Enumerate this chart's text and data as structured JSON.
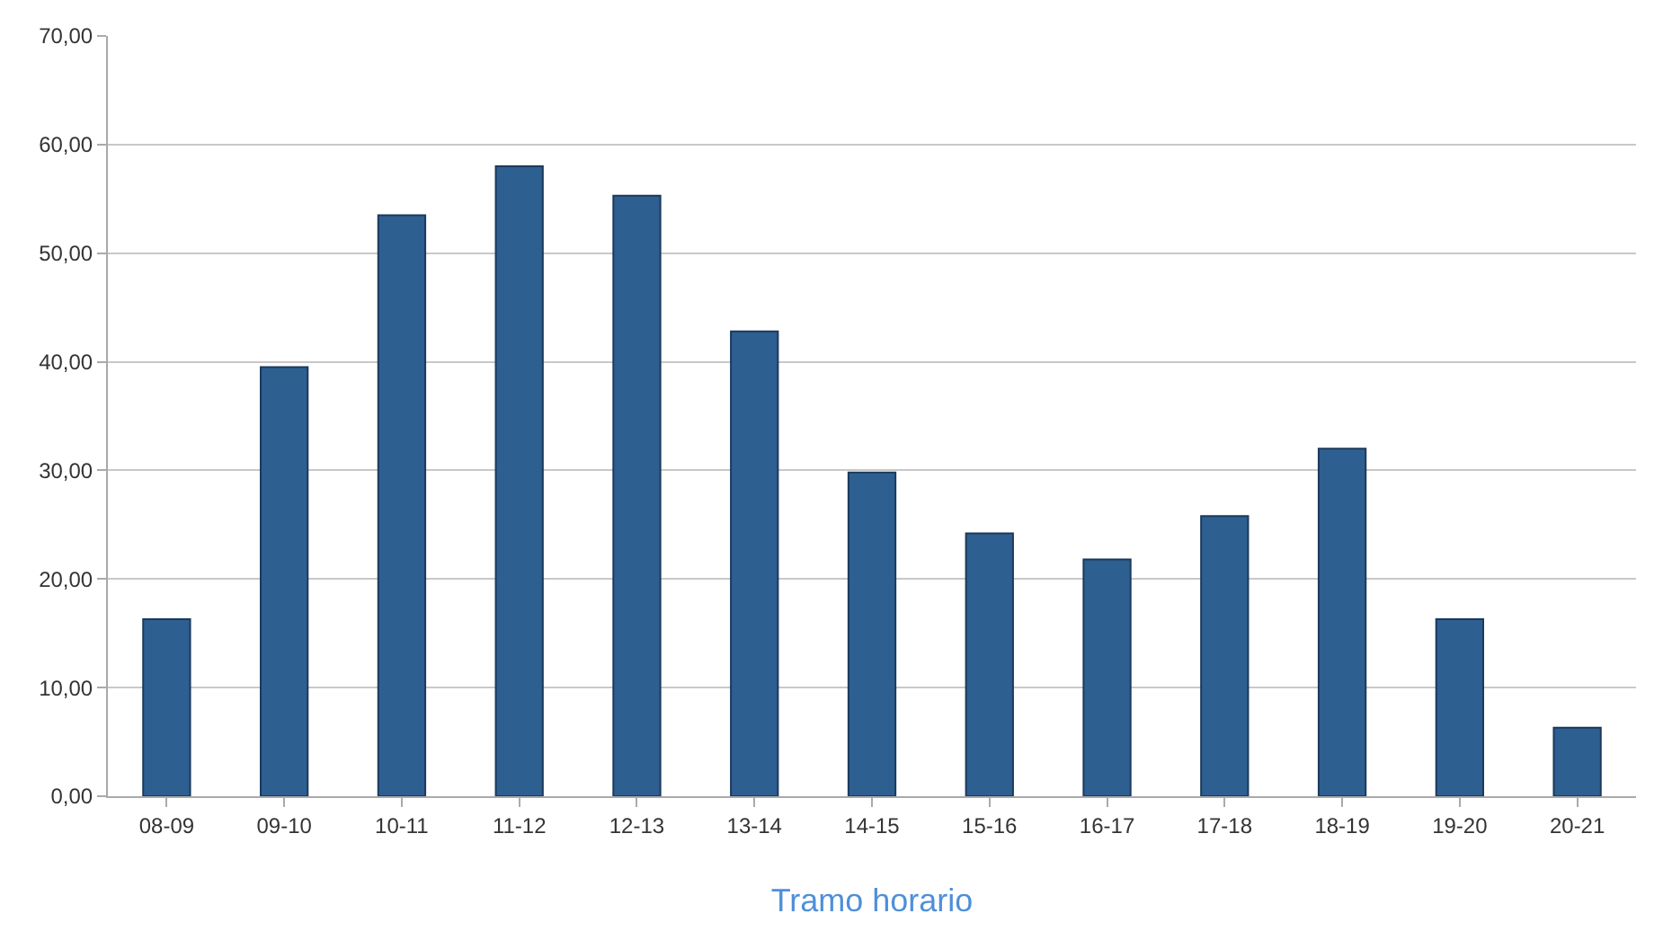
{
  "chart_data": {
    "type": "bar",
    "xlabel": "Tramo horario",
    "categories": [
      "08-09",
      "09-10",
      "10-11",
      "11-12",
      "12-13",
      "13-14",
      "14-15",
      "15-16",
      "16-17",
      "17-18",
      "18-19",
      "19-20",
      "20-21"
    ],
    "values": [
      16.3,
      39.5,
      53.5,
      58.0,
      55.3,
      42.8,
      29.8,
      24.2,
      21.8,
      25.8,
      32.0,
      16.3,
      6.3
    ],
    "color": "#2e5f91",
    "ylim": [
      0,
      70
    ],
    "yticks": [
      {
        "value": 0,
        "label": "0,00"
      },
      {
        "value": 10,
        "label": "10,00"
      },
      {
        "value": 20,
        "label": "20,00"
      },
      {
        "value": 30,
        "label": "30,00"
      },
      {
        "value": 40,
        "label": "40,00"
      },
      {
        "value": 50,
        "label": "50,00"
      },
      {
        "value": 60,
        "label": "60,00"
      },
      {
        "value": 70,
        "label": "70,00"
      }
    ],
    "grid": "y"
  }
}
